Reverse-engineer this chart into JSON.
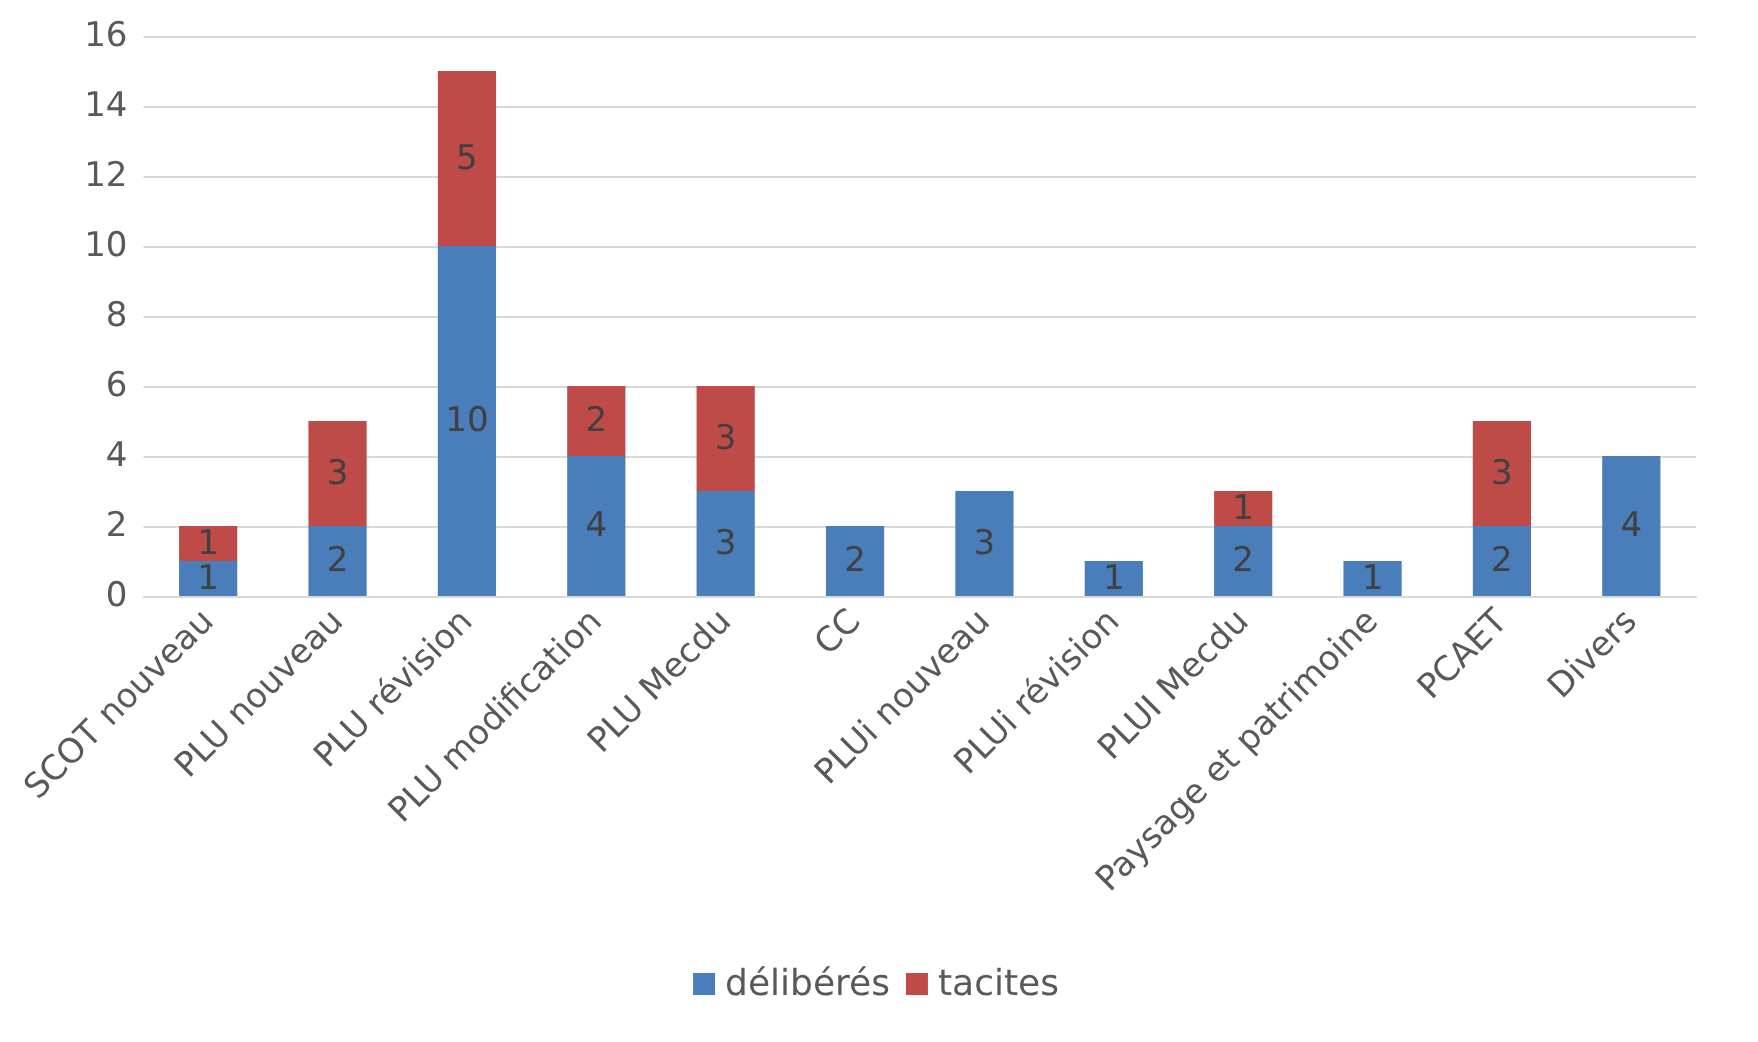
{
  "chart_data": {
    "type": "bar",
    "stacked": true,
    "categories": [
      "SCOT nouveau",
      "PLU nouveau",
      "PLU révision",
      "PLU modification",
      "PLU Mecdu",
      "CC",
      "PLUi nouveau",
      "PLUi révision",
      "PLUI Mecdu",
      "Paysage et patrimoine",
      "PCAET",
      "Divers"
    ],
    "series": [
      {
        "name": "délibérés",
        "color": "#4a7ebb",
        "values": [
          1,
          2,
          10,
          4,
          3,
          2,
          3,
          1,
          2,
          1,
          2,
          4
        ]
      },
      {
        "name": "tacites",
        "color": "#be4b48",
        "values": [
          1,
          3,
          5,
          2,
          3,
          null,
          null,
          null,
          1,
          null,
          3,
          null
        ]
      }
    ],
    "ylim": [
      0,
      16
    ],
    "yticks": [
      0,
      2,
      4,
      6,
      8,
      10,
      12,
      14,
      16
    ],
    "grid": "y",
    "legend": "bottom",
    "data_labels": true
  }
}
